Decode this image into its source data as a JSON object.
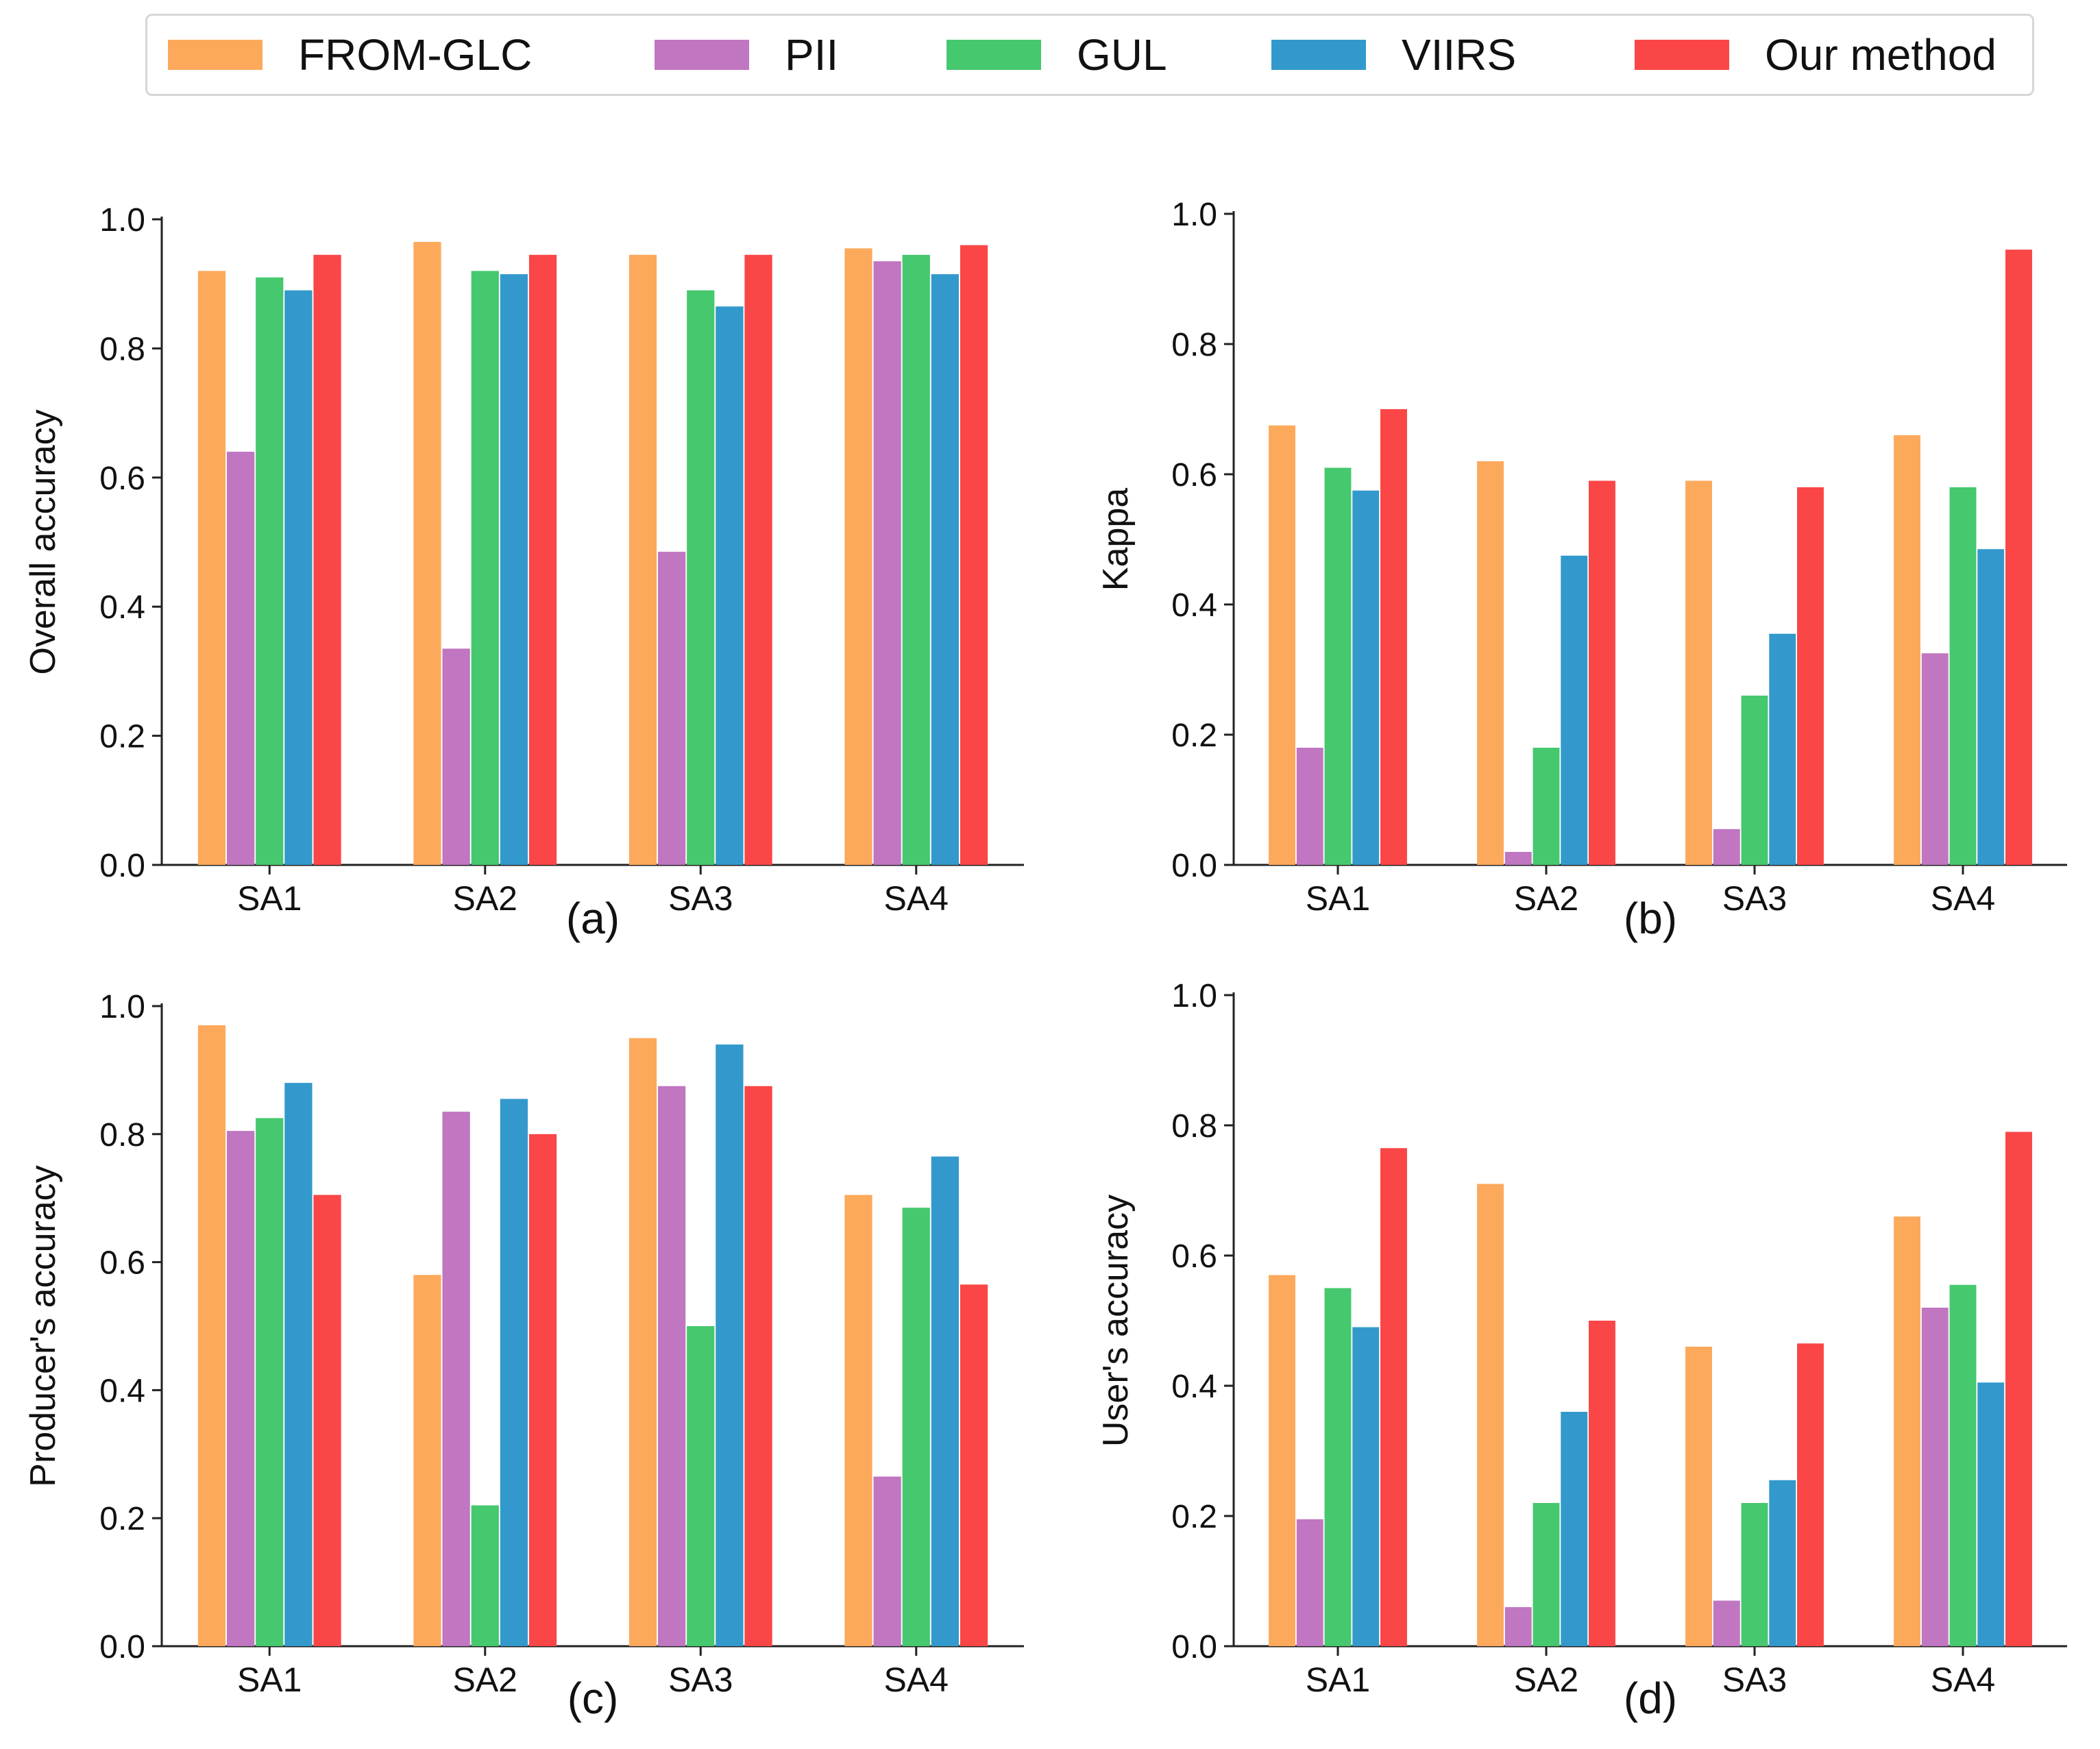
{
  "legend": {
    "items": [
      {
        "label": "FROM-GLC",
        "color": "#FDA95C"
      },
      {
        "label": "PII",
        "color": "#C076C0"
      },
      {
        "label": "GUL",
        "color": "#46C86E"
      },
      {
        "label": "VIIRS",
        "color": "#3399CC"
      },
      {
        "label": "Our method",
        "color": "#FA4646"
      }
    ]
  },
  "chart_data": [
    {
      "panel": "(a)",
      "type": "bar",
      "ylabel": "Overall accuracy",
      "categories": [
        "SA1",
        "SA2",
        "SA3",
        "SA4"
      ],
      "ylim": [
        0,
        1.0
      ],
      "yticks": [
        "0.0",
        "0.2",
        "0.4",
        "0.6",
        "0.8",
        "1.0"
      ],
      "series": [
        {
          "name": "FROM-GLC",
          "values": [
            0.92,
            0.965,
            0.945,
            0.955
          ]
        },
        {
          "name": "PII",
          "values": [
            0.64,
            0.335,
            0.485,
            0.935
          ]
        },
        {
          "name": "GUL",
          "values": [
            0.91,
            0.92,
            0.89,
            0.945
          ]
        },
        {
          "name": "VIIRS",
          "values": [
            0.89,
            0.915,
            0.865,
            0.915
          ]
        },
        {
          "name": "Our method",
          "values": [
            0.945,
            0.945,
            0.945,
            0.96
          ]
        }
      ]
    },
    {
      "panel": "(b)",
      "type": "bar",
      "ylabel": "Kappa",
      "categories": [
        "SA1",
        "SA2",
        "SA3",
        "SA4"
      ],
      "ylim": [
        0,
        1.0
      ],
      "yticks": [
        "0.0",
        "0.2",
        "0.4",
        "0.6",
        "0.8",
        "1.0"
      ],
      "series": [
        {
          "name": "FROM-GLC",
          "values": [
            0.675,
            0.62,
            0.59,
            0.66
          ]
        },
        {
          "name": "PII",
          "values": [
            0.18,
            0.02,
            0.055,
            0.325
          ]
        },
        {
          "name": "GUL",
          "values": [
            0.61,
            0.18,
            0.26,
            0.58
          ]
        },
        {
          "name": "VIIRS",
          "values": [
            0.575,
            0.475,
            0.355,
            0.485
          ]
        },
        {
          "name": "Our method",
          "values": [
            0.7,
            0.59,
            0.58,
            0.945
          ]
        }
      ]
    },
    {
      "panel": "(c)",
      "type": "bar",
      "ylabel": "Producer's accuracy",
      "categories": [
        "SA1",
        "SA2",
        "SA3",
        "SA4"
      ],
      "ylim": [
        0,
        1.0
      ],
      "yticks": [
        "0.0",
        "0.2",
        "0.4",
        "0.6",
        "0.8",
        "1.0"
      ],
      "series": [
        {
          "name": "FROM-GLC",
          "values": [
            0.97,
            0.58,
            0.95,
            0.705
          ]
        },
        {
          "name": "PII",
          "values": [
            0.805,
            0.835,
            0.875,
            0.265
          ]
        },
        {
          "name": "GUL",
          "values": [
            0.825,
            0.22,
            0.5,
            0.685
          ]
        },
        {
          "name": "VIIRS",
          "values": [
            0.88,
            0.855,
            0.94,
            0.765
          ]
        },
        {
          "name": "Our method",
          "values": [
            0.705,
            0.8,
            0.875,
            0.565
          ]
        }
      ]
    },
    {
      "panel": "(d)",
      "type": "bar",
      "ylabel": "User's accuracy",
      "categories": [
        "SA1",
        "SA2",
        "SA3",
        "SA4"
      ],
      "ylim": [
        0,
        1.0
      ],
      "yticks": [
        "0.0",
        "0.2",
        "0.4",
        "0.6",
        "0.8",
        "1.0"
      ],
      "series": [
        {
          "name": "FROM-GLC",
          "values": [
            0.57,
            0.71,
            0.46,
            0.66
          ]
        },
        {
          "name": "PII",
          "values": [
            0.195,
            0.06,
            0.07,
            0.52
          ]
        },
        {
          "name": "GUL",
          "values": [
            0.55,
            0.22,
            0.22,
            0.555
          ]
        },
        {
          "name": "VIIRS",
          "values": [
            0.49,
            0.36,
            0.255,
            0.405
          ]
        },
        {
          "name": "Our method",
          "values": [
            0.765,
            0.5,
            0.465,
            0.79
          ]
        }
      ]
    }
  ]
}
